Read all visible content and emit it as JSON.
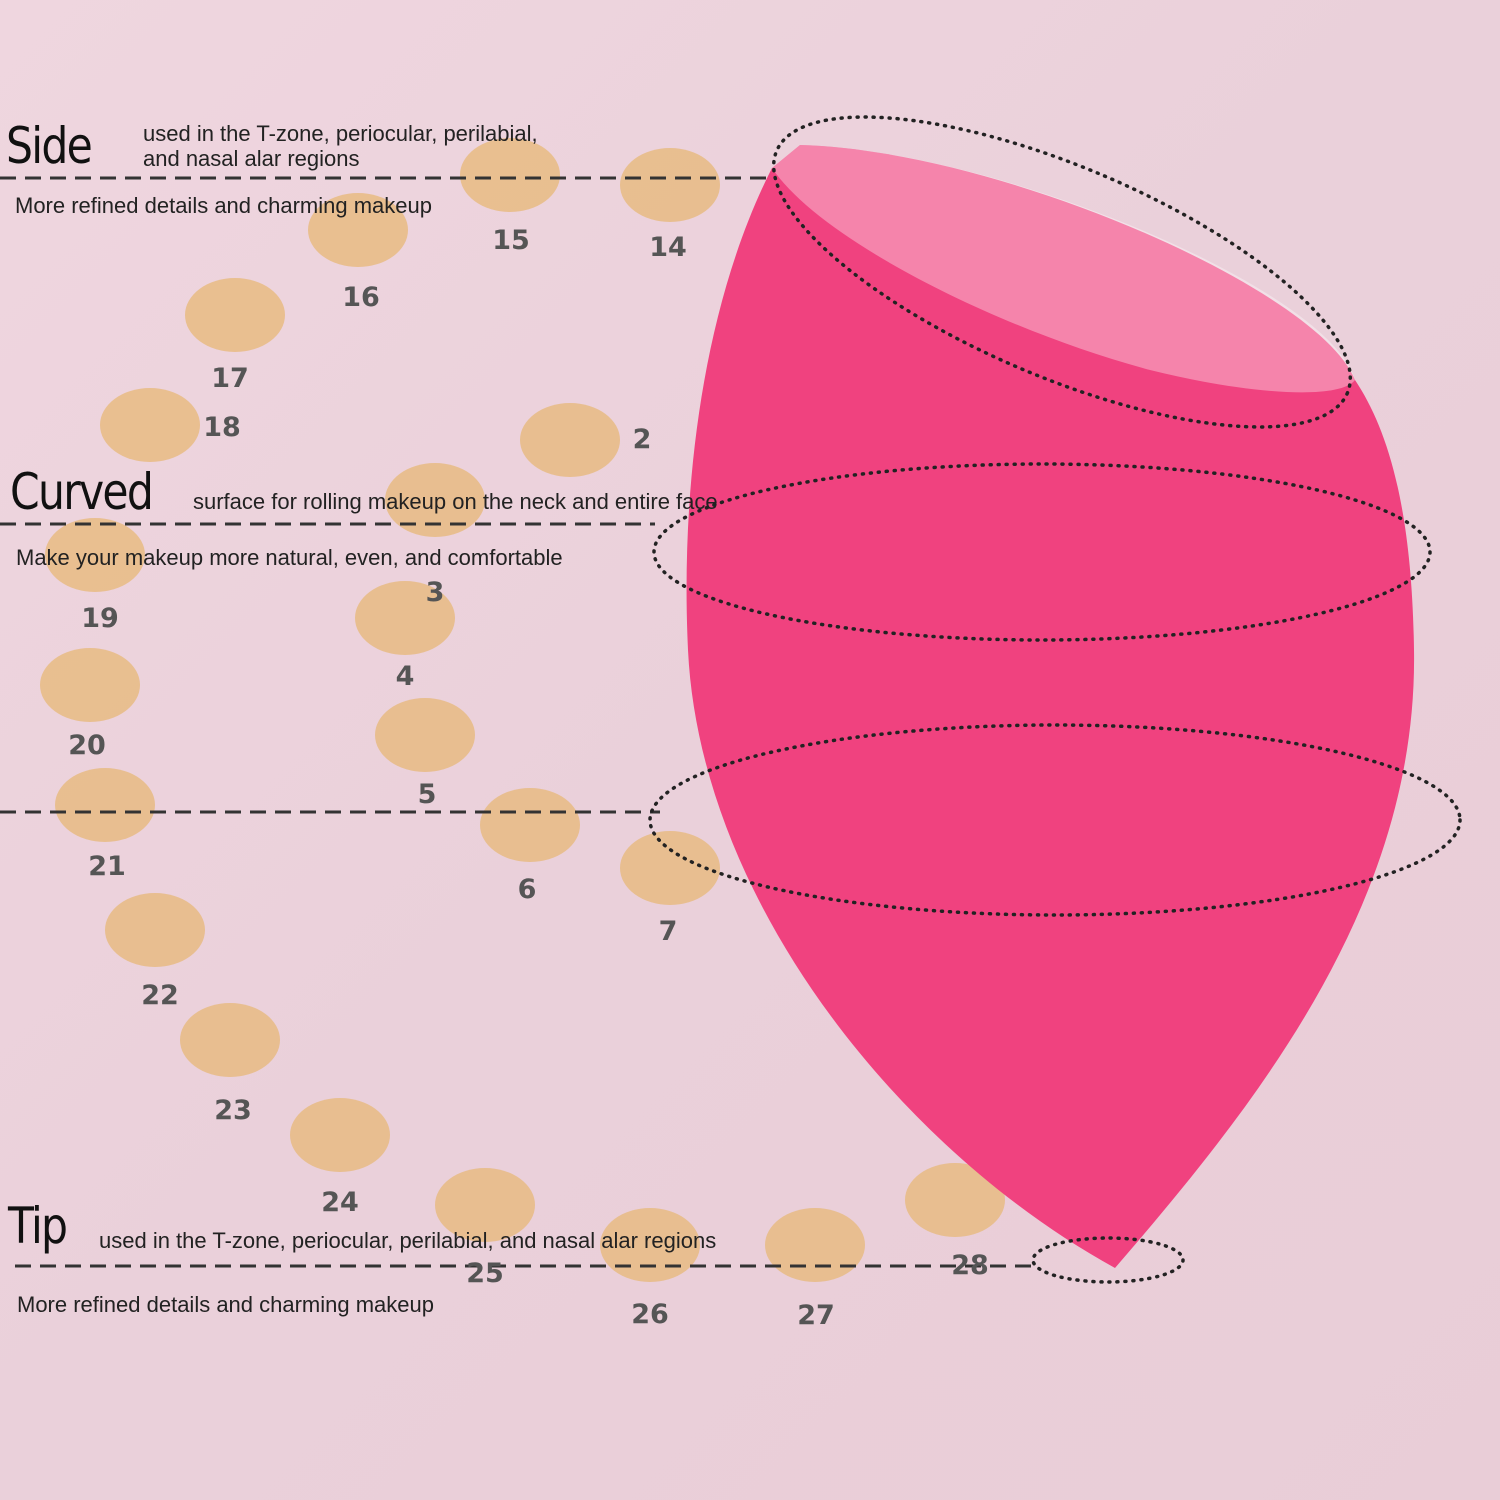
{
  "colors": {
    "background": "#ecd2db",
    "sponge": "#f0427f",
    "sponge_top": "#f45a90",
    "swatch": "#e8bb82"
  },
  "sections": {
    "side": {
      "title": "Side",
      "desc_line1": "used in the T-zone, periocular, perilabial,",
      "desc_line2": "and nasal alar regions",
      "sub": "More refined details and charming makeup"
    },
    "curved": {
      "title": "Curved",
      "desc": "surface for rolling makeup on the neck and entire face",
      "sub": "Make your makeup more natural, even, and comfortable"
    },
    "tip": {
      "title": "Tip",
      "desc": "used in the T-zone, periocular, perilabial, and nasal alar regions",
      "sub": "More refined details and charming makeup"
    }
  },
  "swatches": [
    {
      "label": "14"
    },
    {
      "label": "15"
    },
    {
      "label": "16"
    },
    {
      "label": "17"
    },
    {
      "label": "18"
    },
    {
      "label": "19"
    },
    {
      "label": "20"
    },
    {
      "label": "21"
    },
    {
      "label": "22"
    },
    {
      "label": "23"
    },
    {
      "label": "24"
    },
    {
      "label": "25"
    },
    {
      "label": "26"
    },
    {
      "label": "27"
    },
    {
      "label": "28"
    },
    {
      "label": "2"
    },
    {
      "label": "3"
    },
    {
      "label": "4"
    },
    {
      "label": "5"
    },
    {
      "label": "6"
    },
    {
      "label": "7"
    }
  ]
}
